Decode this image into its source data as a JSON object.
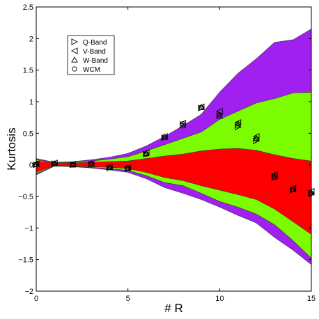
{
  "chart_data": {
    "type": "scatter",
    "xlabel": "# R",
    "ylabel": "Kurtosis",
    "xlim": [
      0,
      15
    ],
    "ylim": [
      -2,
      2.5
    ],
    "xticks": [
      0,
      5,
      10,
      15
    ],
    "yticks": [
      -2,
      -1.5,
      -1,
      -0.5,
      0,
      0.5,
      1,
      1.5,
      2,
      2.5
    ],
    "grid": false,
    "legend_position": "top-left",
    "bands": [
      {
        "color": "#a020f0",
        "x": [
          0,
          1,
          2,
          3,
          4,
          5,
          6,
          7,
          8,
          9,
          10,
          11,
          12,
          13,
          14,
          15
        ],
        "upper": [
          0.1,
          0.04,
          0.05,
          0.08,
          0.12,
          0.18,
          0.3,
          0.45,
          0.62,
          0.8,
          1.15,
          1.45,
          1.68,
          1.94,
          1.98,
          2.15
        ],
        "lower": [
          -0.16,
          -0.02,
          -0.03,
          -0.05,
          -0.08,
          -0.12,
          -0.22,
          -0.36,
          -0.45,
          -0.55,
          -0.67,
          -0.8,
          -0.92,
          -1.15,
          -1.35,
          -1.58
        ]
      },
      {
        "color": "#7cfc00",
        "x": [
          0,
          1,
          2,
          3,
          4,
          5,
          6,
          7,
          8,
          9,
          10,
          11,
          12,
          13,
          14,
          15
        ],
        "upper": [
          0.08,
          0.035,
          0.04,
          0.06,
          0.09,
          0.13,
          0.22,
          0.32,
          0.42,
          0.52,
          0.72,
          0.85,
          0.98,
          1.05,
          1.14,
          1.15
        ],
        "lower": [
          -0.14,
          -0.015,
          -0.025,
          -0.04,
          -0.06,
          -0.09,
          -0.17,
          -0.28,
          -0.33,
          -0.45,
          -0.58,
          -0.67,
          -0.78,
          -0.95,
          -1.2,
          -1.48
        ]
      },
      {
        "color": "#ff0000",
        "x": [
          0,
          1,
          2,
          3,
          4,
          5,
          6,
          7,
          8,
          9,
          10,
          11,
          12,
          13,
          14,
          15
        ],
        "upper": [
          0.06,
          0.03,
          0.03,
          0.04,
          0.05,
          0.06,
          0.1,
          0.14,
          0.17,
          0.22,
          0.25,
          0.26,
          0.23,
          0.16,
          0.1,
          0.06
        ],
        "lower": [
          -0.12,
          -0.01,
          -0.02,
          -0.03,
          -0.04,
          -0.06,
          -0.12,
          -0.2,
          -0.25,
          -0.33,
          -0.4,
          -0.47,
          -0.55,
          -0.7,
          -0.9,
          -1.1
        ]
      }
    ],
    "series": [
      {
        "name": "Q-Band",
        "marker": "triangle-right",
        "x": [
          0,
          1,
          2,
          3,
          4,
          5,
          6,
          7,
          8,
          9,
          10,
          11,
          12,
          13,
          14,
          15
        ],
        "y": [
          0.0,
          0.02,
          0.0,
          0.01,
          -0.05,
          -0.06,
          0.17,
          0.43,
          0.64,
          0.9,
          0.8,
          0.6,
          0.38,
          -0.2,
          -0.4,
          -0.45
        ]
      },
      {
        "name": "V-Band",
        "marker": "triangle-left",
        "x": [
          0,
          1,
          2,
          3,
          4,
          5,
          6,
          7,
          8,
          9,
          10,
          11,
          12,
          13,
          14,
          15
        ],
        "y": [
          0.02,
          0.03,
          0.01,
          0.02,
          -0.03,
          -0.04,
          0.19,
          0.45,
          0.66,
          0.92,
          0.85,
          0.67,
          0.45,
          -0.15,
          -0.37,
          -0.42
        ]
      },
      {
        "name": "W-Band",
        "marker": "triangle-up",
        "x": [
          0,
          1,
          2,
          3,
          4,
          5,
          6,
          7,
          8,
          9,
          10,
          11,
          12,
          13,
          14,
          15
        ],
        "y": [
          0.01,
          0.02,
          0.0,
          0.02,
          -0.04,
          -0.05,
          0.18,
          0.44,
          0.62,
          0.91,
          0.77,
          0.63,
          0.42,
          -0.19,
          -0.39,
          -0.44
        ]
      },
      {
        "name": "WCM",
        "marker": "circle",
        "x": [
          0,
          1,
          2,
          3,
          4,
          5,
          6,
          7,
          8,
          9,
          10,
          11,
          12,
          13,
          14,
          15
        ],
        "y": [
          0.01,
          0.02,
          0.0,
          0.01,
          -0.04,
          -0.05,
          0.17,
          0.44,
          0.65,
          0.91,
          0.79,
          0.65,
          0.41,
          -0.17,
          -0.39,
          -0.45
        ]
      }
    ]
  }
}
